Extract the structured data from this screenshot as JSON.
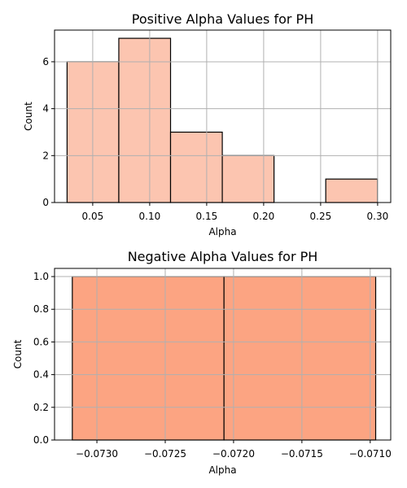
{
  "chart_data": [
    {
      "type": "histogram",
      "title": "Positive Alpha Values for PH",
      "xlabel": "Alpha",
      "ylabel": "Count",
      "xlim": [
        0.0165,
        0.3115
      ],
      "ylim": [
        0,
        7.35
      ],
      "bar_color": "#fcc5b0",
      "grid": true,
      "bins": [
        {
          "x0": 0.0275,
          "x1": 0.0729,
          "count": 6
        },
        {
          "x0": 0.0729,
          "x1": 0.1183,
          "count": 7
        },
        {
          "x0": 0.1183,
          "x1": 0.1637,
          "count": 3
        },
        {
          "x0": 0.1637,
          "x1": 0.2091,
          "count": 2
        },
        {
          "x0": 0.2091,
          "x1": 0.2545,
          "count": 0
        },
        {
          "x0": 0.2545,
          "x1": 0.2999,
          "count": 1
        }
      ],
      "xticks": [
        {
          "value": 0.05,
          "label": "0.05"
        },
        {
          "value": 0.1,
          "label": "0.10"
        },
        {
          "value": 0.15,
          "label": "0.15"
        },
        {
          "value": 0.2,
          "label": "0.20"
        },
        {
          "value": 0.25,
          "label": "0.25"
        },
        {
          "value": 0.3,
          "label": "0.30"
        }
      ],
      "yticks": [
        {
          "value": 0,
          "label": "0"
        },
        {
          "value": 2,
          "label": "2"
        },
        {
          "value": 4,
          "label": "4"
        },
        {
          "value": 6,
          "label": "6"
        }
      ]
    },
    {
      "type": "histogram",
      "title": "Negative Alpha Values for PH",
      "xlabel": "Alpha",
      "ylabel": "Count",
      "xlim": [
        -0.07331,
        -0.07085
      ],
      "ylim": [
        0,
        1.05
      ],
      "bar_color": "#fca482",
      "grid": true,
      "bins": [
        {
          "x0": -0.07318,
          "x1": -0.07207,
          "count": 1
        },
        {
          "x0": -0.07207,
          "x1": -0.07096,
          "count": 1
        }
      ],
      "xticks": [
        {
          "value": -0.073,
          "label": "−0.0730"
        },
        {
          "value": -0.0725,
          "label": "−0.0725"
        },
        {
          "value": -0.072,
          "label": "−0.0720"
        },
        {
          "value": -0.0715,
          "label": "−0.0715"
        },
        {
          "value": -0.071,
          "label": "−0.0710"
        }
      ],
      "yticks": [
        {
          "value": 0.0,
          "label": "0.0"
        },
        {
          "value": 0.2,
          "label": "0.2"
        },
        {
          "value": 0.4,
          "label": "0.4"
        },
        {
          "value": 0.6,
          "label": "0.6"
        },
        {
          "value": 0.8,
          "label": "0.8"
        },
        {
          "value": 1.0,
          "label": "1.0"
        }
      ]
    }
  ]
}
